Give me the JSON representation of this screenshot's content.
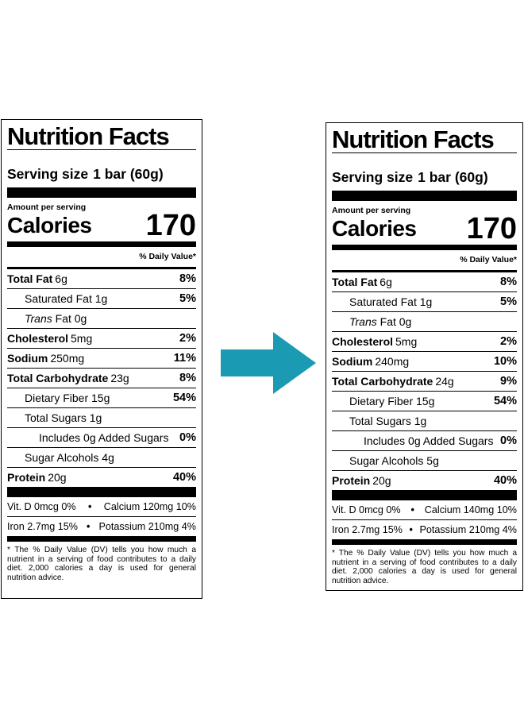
{
  "left": {
    "title": "Nutrition Facts",
    "serving_label": "Serving size",
    "serving_value": "1 bar (60g)",
    "amount_per_serving": "Amount per serving",
    "calories_label": "Calories",
    "calories_value": "170",
    "dv_header": "% Daily Value*",
    "total_fat": {
      "name": "Total Fat",
      "amount": "6g",
      "pct": "8%"
    },
    "saturated_fat": {
      "name": "Saturated Fat 1g",
      "pct": "5%"
    },
    "trans_fat": {
      "name_italic": "Trans",
      "name_rest": "Fat 0g"
    },
    "cholesterol": {
      "name": "Cholesterol",
      "amount": "5mg",
      "pct": "2%"
    },
    "sodium": {
      "name": "Sodium",
      "amount": "250mg",
      "pct": "11%"
    },
    "total_carb": {
      "name": "Total Carbohydrate",
      "amount": "23g",
      "pct": "8%"
    },
    "fiber": {
      "name": "Dietary Fiber 15g",
      "pct": "54%"
    },
    "total_sugars": {
      "name": "Total Sugars 1g"
    },
    "added_sugars": {
      "name": "Includes 0g Added Sugars",
      "pct": "0%"
    },
    "sugar_alcohols": {
      "name": "Sugar Alcohols 4g"
    },
    "protein": {
      "name": "Protein",
      "amount": "20g",
      "pct": "40%"
    },
    "vit_d": "Vit. D 0mcg 0%",
    "calcium": "Calcium 120mg 10%",
    "iron": "Iron 2.7mg 15%",
    "potassium": "Potassium 210mg 4%",
    "footnote": "* The % Daily Value (DV) tells you how much a nutrient in a serving of food contributes to a daily diet. 2,000 calories a day is used for general nutrition advice."
  },
  "right": {
    "title": "Nutrition Facts",
    "serving_label": "Serving size",
    "serving_value": "1 bar (60g)",
    "amount_per_serving": "Amount per serving",
    "calories_label": "Calories",
    "calories_value": "170",
    "dv_header": "% Daily Value*",
    "total_fat": {
      "name": "Total Fat",
      "amount": "6g",
      "pct": "8%"
    },
    "saturated_fat": {
      "name": "Saturated Fat 1g",
      "pct": "5%"
    },
    "trans_fat": {
      "name_italic": "Trans",
      "name_rest": "Fat 0g"
    },
    "cholesterol": {
      "name": "Cholesterol",
      "amount": "5mg",
      "pct": "2%"
    },
    "sodium": {
      "name": "Sodium",
      "amount": "240mg",
      "pct": "10%"
    },
    "total_carb": {
      "name": "Total Carbohydrate",
      "amount": "24g",
      "pct": "9%"
    },
    "fiber": {
      "name": "Dietary Fiber 15g",
      "pct": "54%"
    },
    "total_sugars": {
      "name": "Total Sugars 1g"
    },
    "added_sugars": {
      "name": "Includes 0g Added Sugars",
      "pct": "0%"
    },
    "sugar_alcohols": {
      "name": "Sugar Alcohols 5g"
    },
    "protein": {
      "name": "Protein",
      "amount": "20g",
      "pct": "40%"
    },
    "vit_d": "Vit. D 0mcg 0%",
    "calcium": "Calcium 140mg 10%",
    "iron": "Iron 2.7mg 15%",
    "potassium": "Potassium 210mg 4%",
    "footnote": "* The % Daily Value (DV) tells you how much a nutrient in a serving of food contributes to a daily diet. 2,000 calories a day is used for general nutrition advice."
  },
  "arrow_color": "#1a9bb3",
  "arrow_icon": "right-arrow-icon",
  "mineral_separator": "•"
}
